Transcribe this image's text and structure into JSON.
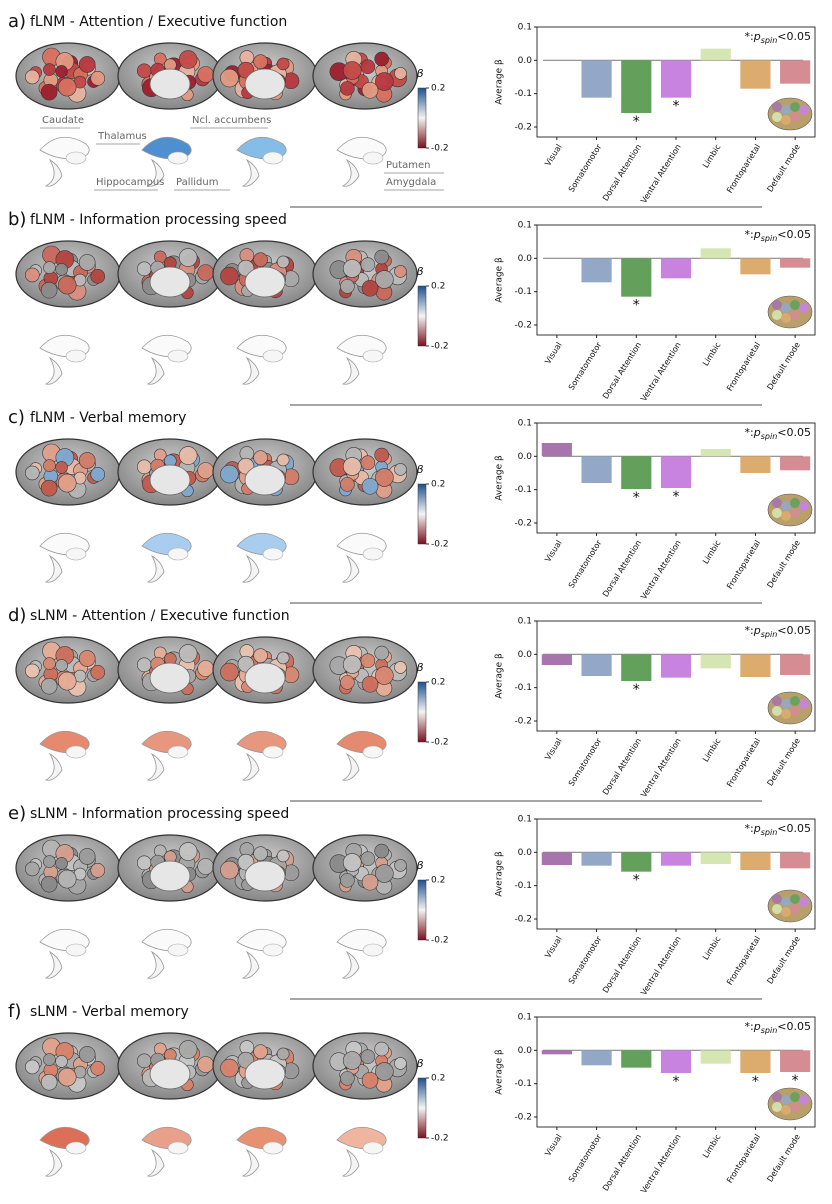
{
  "chart_data": [
    {
      "type": "bar",
      "panel_label": "a)",
      "title": "fLNM - Attention / Executive function",
      "categories": [
        "Visual",
        "Somatomotor",
        "Dorsal Attention",
        "Ventral Attention",
        "Limbic",
        "Frontoparietal",
        "Default mode"
      ],
      "colors": [
        "#a774ad",
        "#92a8c6",
        "#63a05c",
        "#c883df",
        "#d6e6b3",
        "#dcab6e",
        "#d58c93"
      ],
      "values": [
        0,
        -0.112,
        -0.158,
        -0.112,
        0.035,
        -0.085,
        -0.07
      ],
      "significant": [
        false,
        false,
        true,
        true,
        false,
        false,
        false
      ],
      "significance_marker": "*",
      "significance_note": {
        "text_before": "*:",
        "symbol": "p",
        "subscript": "spin",
        "text_after": "<0.05"
      },
      "y_label": "Average β",
      "ylim": [
        -0.23,
        0.1
      ],
      "yticks": [
        0.1,
        {
          "value": 0,
          "label": "0.0"
        },
        -0.1,
        -0.2
      ],
      "colorbar": {
        "label": "β",
        "lim": [
          -0.2,
          0.2
        ],
        "ticks": [
          0.2,
          -0.2
        ]
      },
      "structure_labels": [
        "Caudate",
        "Thalamus",
        "Ncl. accumbens",
        "Hippocampus",
        "Pallidum",
        "Putamen",
        "Amygdala"
      ]
    },
    {
      "type": "bar",
      "panel_label": "b)",
      "title": "fLNM - Information processing speed",
      "categories": [
        "Visual",
        "Somatomotor",
        "Dorsal Attention",
        "Ventral Attention",
        "Limbic",
        "Frontoparietal",
        "Default mode"
      ],
      "colors": [
        "#a774ad",
        "#92a8c6",
        "#63a05c",
        "#c883df",
        "#d6e6b3",
        "#dcab6e",
        "#d58c93"
      ],
      "values": [
        0,
        -0.072,
        -0.115,
        -0.06,
        0.03,
        -0.048,
        -0.028
      ],
      "significant": [
        false,
        false,
        true,
        false,
        false,
        false,
        false
      ],
      "significance_marker": "*",
      "significance_note": {
        "text_before": "*:",
        "symbol": "p",
        "subscript": "spin",
        "text_after": "<0.05"
      },
      "y_label": "Average β",
      "ylim": [
        -0.23,
        0.1
      ],
      "yticks": [
        0.1,
        {
          "value": 0,
          "label": "0.0"
        },
        -0.1,
        -0.2
      ],
      "colorbar": {
        "label": "β",
        "lim": [
          -0.2,
          0.2
        ],
        "ticks": [
          0.2,
          -0.2
        ]
      }
    },
    {
      "type": "bar",
      "panel_label": "c)",
      "title": "fLNM - Verbal memory",
      "categories": [
        "Visual",
        "Somatomotor",
        "Dorsal Attention",
        "Ventral Attention",
        "Limbic",
        "Frontoparietal",
        "Default mode"
      ],
      "colors": [
        "#a774ad",
        "#92a8c6",
        "#63a05c",
        "#c883df",
        "#d6e6b3",
        "#dcab6e",
        "#d58c93"
      ],
      "values": [
        0.04,
        -0.08,
        -0.098,
        -0.095,
        0.022,
        -0.05,
        -0.042
      ],
      "significant": [
        false,
        false,
        true,
        true,
        false,
        false,
        false
      ],
      "significance_marker": "*",
      "significance_note": {
        "text_before": "*:",
        "symbol": "p",
        "subscript": "spin",
        "text_after": "<0.05"
      },
      "y_label": "Average β",
      "ylim": [
        -0.23,
        0.1
      ],
      "yticks": [
        0.1,
        {
          "value": 0,
          "label": "0.0"
        },
        -0.1,
        -0.2
      ],
      "colorbar": {
        "label": "β",
        "lim": [
          -0.2,
          0.2
        ],
        "ticks": [
          0.2,
          -0.2
        ]
      }
    },
    {
      "type": "bar",
      "panel_label": "d)",
      "title": "sLNM - Attention / Executive function",
      "categories": [
        "Visual",
        "Somatomotor",
        "Dorsal Attention",
        "Ventral Attention",
        "Limbic",
        "Frontoparietal",
        "Default mode"
      ],
      "colors": [
        "#a774ad",
        "#92a8c6",
        "#63a05c",
        "#c883df",
        "#d6e6b3",
        "#dcab6e",
        "#d58c93"
      ],
      "values": [
        -0.032,
        -0.065,
        -0.08,
        -0.07,
        -0.042,
        -0.068,
        -0.062
      ],
      "significant": [
        false,
        false,
        true,
        false,
        false,
        false,
        false
      ],
      "significance_marker": "*",
      "significance_note": {
        "text_before": "*:",
        "symbol": "p",
        "subscript": "spin",
        "text_after": "<0.05"
      },
      "y_label": "Average β",
      "ylim": [
        -0.23,
        0.1
      ],
      "yticks": [
        0.1,
        {
          "value": 0,
          "label": "0.0"
        },
        -0.1,
        -0.2
      ],
      "colorbar": {
        "label": "β",
        "lim": [
          -0.2,
          0.2
        ],
        "ticks": [
          0.2,
          -0.2
        ]
      }
    },
    {
      "type": "bar",
      "panel_label": "e)",
      "title": "sLNM - Information processing speed",
      "categories": [
        "Visual",
        "Somatomotor",
        "Dorsal Attention",
        "Ventral Attention",
        "Limbic",
        "Frontoparietal",
        "Default mode"
      ],
      "colors": [
        "#a774ad",
        "#92a8c6",
        "#63a05c",
        "#c883df",
        "#d6e6b3",
        "#dcab6e",
        "#d58c93"
      ],
      "values": [
        -0.038,
        -0.04,
        -0.058,
        -0.04,
        -0.035,
        -0.053,
        -0.048
      ],
      "significant": [
        false,
        false,
        true,
        false,
        false,
        false,
        false
      ],
      "significance_marker": "*",
      "significance_note": {
        "text_before": "*:",
        "symbol": "p",
        "subscript": "spin",
        "text_after": "<0.05"
      },
      "y_label": "Average β",
      "ylim": [
        -0.23,
        0.1
      ],
      "yticks": [
        0.1,
        {
          "value": 0,
          "label": "0.0"
        },
        -0.1,
        -0.2
      ],
      "colorbar": {
        "label": "β",
        "lim": [
          -0.2,
          0.2
        ],
        "ticks": [
          0.2,
          -0.2
        ]
      }
    },
    {
      "type": "bar",
      "panel_label": "f)",
      "title": "sLNM - Verbal memory",
      "categories": [
        "Visual",
        "Somatomotor",
        "Dorsal Attention",
        "Ventral Attention",
        "Limbic",
        "Frontoparietal",
        "Default mode"
      ],
      "colors": [
        "#a774ad",
        "#92a8c6",
        "#63a05c",
        "#c883df",
        "#d6e6b3",
        "#dcab6e",
        "#d58c93"
      ],
      "values": [
        -0.012,
        -0.045,
        -0.052,
        -0.068,
        -0.04,
        -0.068,
        -0.065
      ],
      "significant": [
        false,
        false,
        false,
        true,
        false,
        true,
        true
      ],
      "significance_marker": "*",
      "significance_note": {
        "text_before": "*:",
        "symbol": "p",
        "subscript": "spin",
        "text_after": "<0.05"
      },
      "y_label": "Average β",
      "ylim": [
        -0.23,
        0.1
      ],
      "yticks": [
        0.1,
        {
          "value": 0,
          "label": "0.0"
        },
        -0.1,
        -0.2
      ],
      "colorbar": {
        "label": "β",
        "lim": [
          -0.2,
          0.2
        ],
        "ticks": [
          0.2,
          -0.2
        ]
      }
    }
  ]
}
